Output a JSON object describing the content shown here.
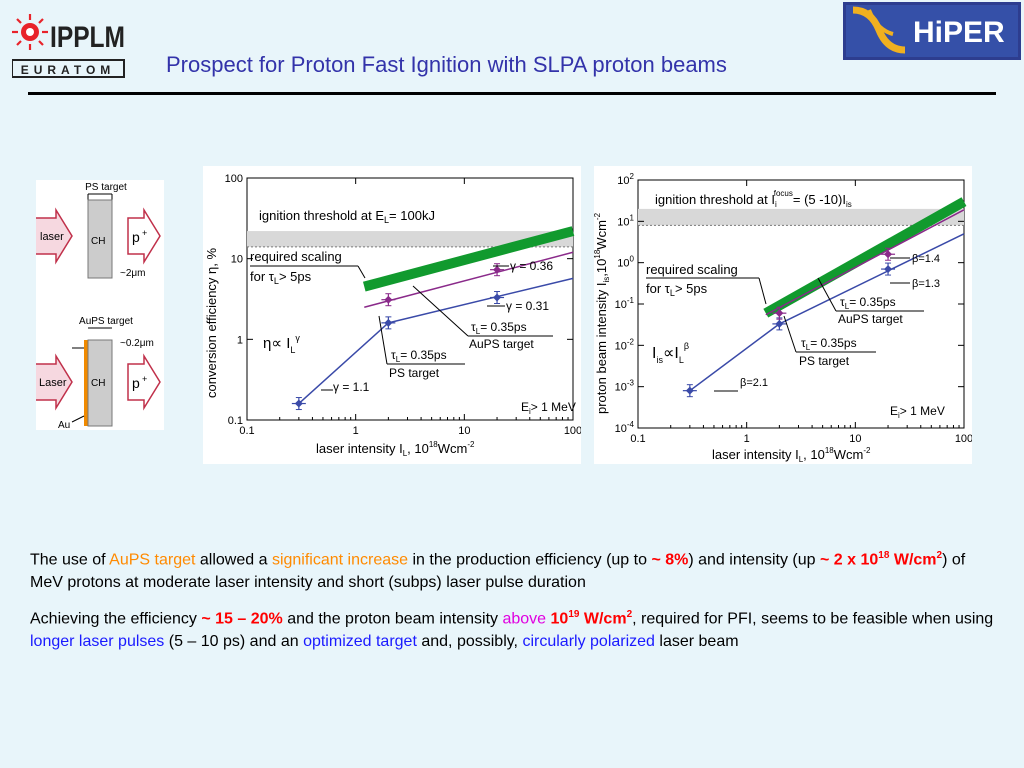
{
  "header": {
    "title": "Prospect for Proton Fast Ignition with SLPA proton beams",
    "logo_left": {
      "main": "IPPLM",
      "sub": "EURATOM"
    },
    "logo_right": {
      "main": "HiPER"
    }
  },
  "targets_diagram": {
    "ps_title": "PS target",
    "ps_laser": "laser",
    "ps_ch": "CH",
    "ps_proton": "p",
    "ps_thickness": "~2",
    "aups_title": "AuPS target",
    "aups_thickness": "~0.2",
    "aups_laser": "Laser",
    "aups_ch": "CH",
    "aups_proton": "p",
    "aups_au": "Au",
    "unit_um": "m"
  },
  "chart_left": {
    "ylabel": "conversion efficiency η, %",
    "xlabel": "laser intensity I",
    "xlabel_sub": "L",
    "xlabel_unit": ", 10",
    "xlabel_exp": "18",
    "xlabel_unit2": "Wcm",
    "xlabel_exp2": "-2",
    "xticks": [
      "0.1",
      "1",
      "10",
      "100"
    ],
    "yticks": [
      "0.1",
      "1",
      "10",
      "100"
    ],
    "threshold_label": "ignition threshold at E",
    "threshold_sub": "L",
    "threshold_val": "= 100kJ",
    "scaling_label": "required scaling",
    "scaling_for": "for τ",
    "scaling_sub": "L",
    "scaling_val": "> 5ps",
    "gamma_036": "γ = 0.36",
    "gamma_031": "γ = 0.31",
    "gamma_11": "γ = 1.1",
    "aups_tau": "τ",
    "aups_tau_sub": "L",
    "aups_tau_val": "= 0.35ps",
    "aups_target": "AuPS target",
    "ps_tau": "τ",
    "ps_tau_sub": "L",
    "ps_tau_val": "= 0.35ps",
    "ps_target": "PS target",
    "eta_formula": "η∝ I",
    "eta_sub": "L",
    "eta_exp": "γ",
    "energy_label": "E",
    "energy_sub": "i",
    "energy_val": "> 1 MeV"
  },
  "chart_right": {
    "ylabel_main": "proton beam intensity I",
    "ylabel_sub": "is",
    "ylabel_unit": ",10",
    "ylabel_exp": "18",
    "ylabel_unit2": "Wcm",
    "ylabel_exp2": "-2",
    "xlabel": "laser intensity I",
    "xlabel_sub": "L",
    "xlabel_unit": ", 10",
    "xlabel_exp": "18",
    "xlabel_unit2": "Wcm",
    "xlabel_exp2": "-2",
    "xticks": [
      "0.1",
      "1",
      "10",
      "100"
    ],
    "yticks_base": "10",
    "yticks_exp": [
      "2",
      "1",
      "0",
      "-1",
      "-2",
      "-3",
      "-4"
    ],
    "threshold_label": "ignition threshold at  I",
    "threshold_sub": "i",
    "threshold_sup": "focus",
    "threshold_val": "= (5 -10)I",
    "threshold_val_sub": "is",
    "scaling_label": "required scaling",
    "scaling_for": "for τ",
    "scaling_sub": "L",
    "scaling_val": "> 5ps",
    "beta_14": "β=1.4",
    "beta_13": "β=1.3",
    "beta_21": "β=2.1",
    "aups_tau": "τ",
    "aups_tau_sub": "L",
    "aups_tau_val": "= 0.35ps",
    "aups_target": "AuPS target",
    "ps_tau": "τ",
    "ps_tau_sub": "L",
    "ps_tau_val": "= 0.35ps",
    "ps_target": "PS target",
    "formula_I": "I",
    "formula_sub": "is",
    "formula_mid": "∝I",
    "formula_sub2": "L",
    "formula_exp": "β",
    "energy_label": "E",
    "energy_sub": "i",
    "energy_val": "> 1 MeV"
  },
  "chart_data": [
    {
      "type": "scatter",
      "title": "",
      "xlabel": "laser intensity I_L, 10^18 Wcm^-2",
      "ylabel": "conversion efficiency η, %",
      "xscale": "log",
      "yscale": "log",
      "xlim": [
        0.1,
        100
      ],
      "ylim": [
        0.1,
        100
      ],
      "series": [
        {
          "name": "PS target",
          "x": [
            0.3,
            2,
            20
          ],
          "y": [
            0.16,
            1.6,
            3.3
          ],
          "color": "#3a4aa8"
        },
        {
          "name": "AuPS target",
          "x": [
            2,
            20
          ],
          "y": [
            3.1,
            7.3
          ],
          "color": "#8a2a8a"
        }
      ],
      "fits": [
        {
          "label": "γ = 1.1",
          "x": [
            0.3,
            2
          ],
          "y": [
            0.16,
            1.6
          ]
        },
        {
          "label": "γ = 0.31",
          "x": [
            2,
            100
          ],
          "y": [
            1.6,
            5.7
          ]
        },
        {
          "label": "γ = 0.36",
          "x": [
            1.2,
            100
          ],
          "y": [
            2.5,
            12
          ]
        }
      ],
      "threshold_band": [
        14,
        22
      ],
      "required_scaling": {
        "x": [
          1.2,
          100
        ],
        "y": [
          4.5,
          22
        ]
      }
    },
    {
      "type": "scatter",
      "title": "",
      "xlabel": "laser intensity I_L, 10^18 Wcm^-2",
      "ylabel": "proton beam intensity I_is, 10^18 Wcm^-2",
      "xscale": "log",
      "yscale": "log",
      "xlim": [
        0.1,
        100
      ],
      "ylim": [
        0.0001,
        100
      ],
      "series": [
        {
          "name": "PS target",
          "x": [
            0.3,
            2,
            20
          ],
          "y": [
            0.0008,
            0.033,
            0.7
          ],
          "color": "#3a4aa8"
        },
        {
          "name": "AuPS target",
          "x": [
            2,
            20
          ],
          "y": [
            0.06,
            1.6
          ],
          "color": "#8a2a8a"
        }
      ],
      "fits": [
        {
          "label": "β=2.1",
          "x": [
            0.3,
            2
          ],
          "y": [
            0.0008,
            0.033
          ]
        },
        {
          "label": "β=1.3",
          "x": [
            2,
            100
          ],
          "y": [
            0.033,
            5
          ]
        },
        {
          "label": "β=1.4",
          "x": [
            1.5,
            100
          ],
          "y": [
            0.055,
            19
          ]
        }
      ],
      "threshold_band": [
        8,
        20
      ],
      "required_scaling": {
        "x": [
          1.5,
          100
        ],
        "y": [
          0.06,
          30
        ]
      }
    }
  ],
  "text": {
    "p1_a": "The use of ",
    "p1_b": "AuPS target",
    "p1_c": " allowed a ",
    "p1_d": "significant increase",
    "p1_e": " in the production efficiency (up to ",
    "p1_f": "~ 8%",
    "p1_g": ") and intensity (up ",
    "p1_h": "~ 2 x 10",
    "p1_h_exp": "18",
    "p1_i": " W/cm",
    "p1_i_exp": "2",
    "p1_j": ") of MeV protons at moderate laser intensity and short (subps) laser pulse duration",
    "p2_a": "Achieving the efficiency ",
    "p2_b": "~ 15 – 20%",
    "p2_c": " and the proton beam intensity ",
    "p2_d": "above",
    "p2_e": " 10",
    "p2_e_exp": "19",
    "p2_f": " W/cm",
    "p2_f_exp": "2",
    "p2_g": ", required for PFI, seems to be feasible when using ",
    "p2_h": "longer laser pulses",
    "p2_i": " (5 – 10 ps) and an ",
    "p2_j": "optimized target",
    "p2_k": " and, possibly, ",
    "p2_l": "circularly polarized",
    "p2_m": " laser beam"
  }
}
